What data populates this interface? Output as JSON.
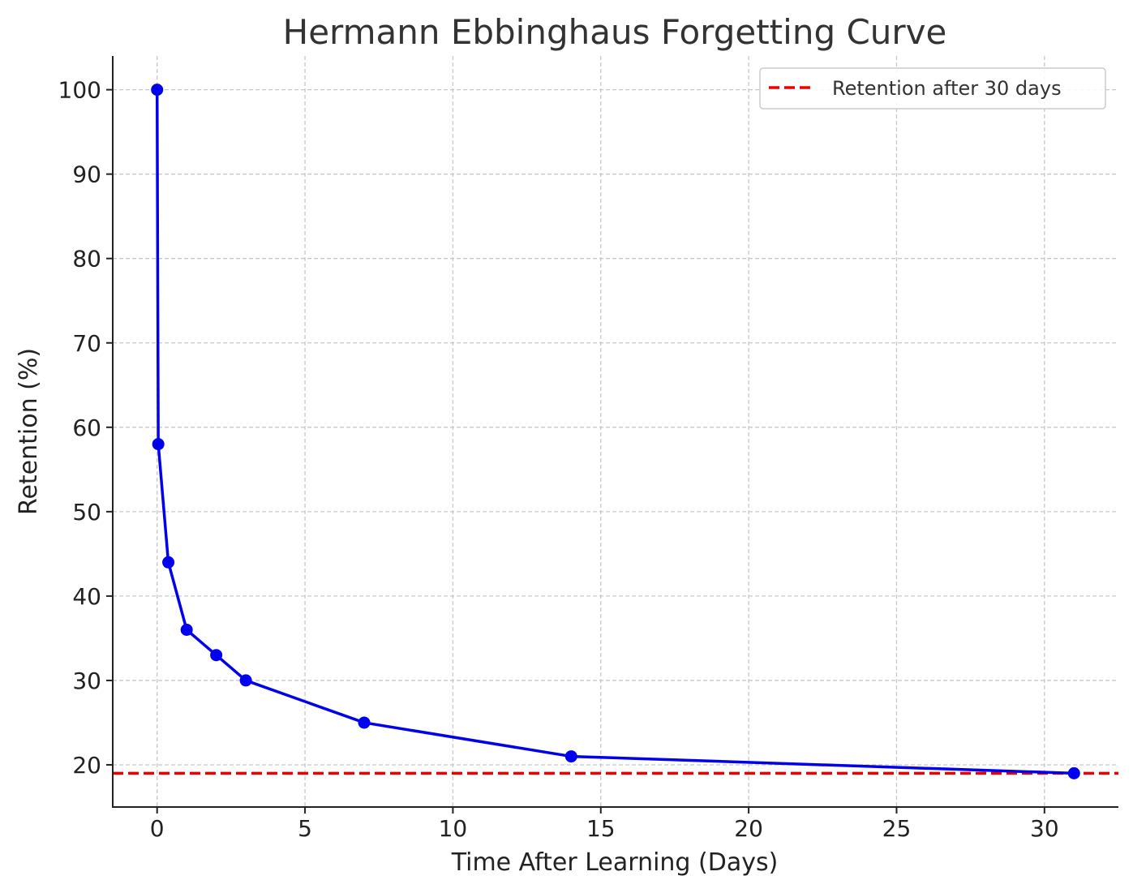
{
  "chart_data": {
    "type": "line",
    "title": "Hermann Ebbinghaus Forgetting Curve",
    "xlabel": "Time After Learning (Days)",
    "ylabel": "Retention (%)",
    "xlim": [
      -1.5,
      32.5
    ],
    "ylim": [
      15,
      104
    ],
    "xticks": [
      0,
      5,
      10,
      15,
      20,
      25,
      30
    ],
    "yticks": [
      20,
      30,
      40,
      50,
      60,
      70,
      80,
      90,
      100
    ],
    "grid": true,
    "legend_position": "top-right",
    "series": [
      {
        "kind": "line-with-markers",
        "color": "#0000ee",
        "x": [
          0,
          0.04,
          0.38,
          1,
          2,
          3,
          7,
          14,
          31
        ],
        "y": [
          100,
          58,
          44,
          36,
          33,
          30,
          25,
          21,
          19
        ]
      }
    ],
    "reference_lines": [
      {
        "orientation": "horizontal",
        "name": "Retention after 30 days",
        "y": 19,
        "style": "dashed",
        "color": "#ee0000"
      }
    ]
  }
}
